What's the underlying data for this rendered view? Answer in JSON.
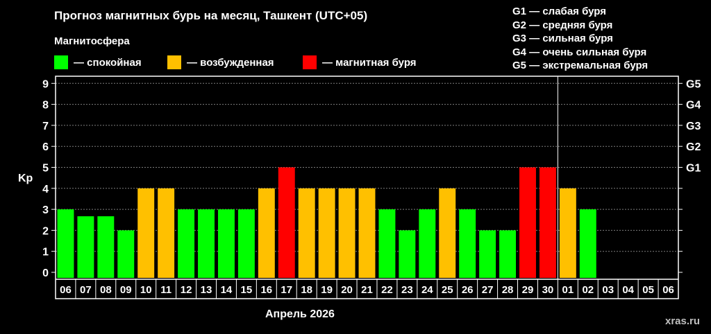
{
  "chart_data": {
    "type": "bar",
    "title": "Прогноз магнитных бурь на месяц, Ташкент (UTC+05)",
    "section_label": "Магнитосфера",
    "legend": [
      {
        "label": "— спокойная",
        "color": "#00ff00"
      },
      {
        "label": "— возбужденная",
        "color": "#ffc000"
      },
      {
        "label": "— магнитная буря",
        "color": "#ff0000"
      }
    ],
    "storm_scale": [
      "G1 — слабая буря",
      "G2 — средняя буря",
      "G3 — сильная буря",
      "G4 — очень сильная буря",
      "G5 — экстремальная буря"
    ],
    "xlabel": "Апрель 2026",
    "ylabel": "Kp",
    "ylim": [
      0,
      9
    ],
    "yticks": [
      "0",
      "1",
      "2",
      "3",
      "4",
      "5",
      "6",
      "7",
      "8",
      "9"
    ],
    "right_ticks": [
      {
        "value": 5,
        "label": "G1"
      },
      {
        "value": 6,
        "label": "G2"
      },
      {
        "value": 7,
        "label": "G3"
      },
      {
        "value": 8,
        "label": "G4"
      },
      {
        "value": 9,
        "label": "G5"
      }
    ],
    "categories": [
      "06",
      "07",
      "08",
      "09",
      "10",
      "11",
      "12",
      "13",
      "14",
      "15",
      "16",
      "17",
      "18",
      "19",
      "20",
      "21",
      "22",
      "23",
      "24",
      "25",
      "26",
      "27",
      "28",
      "29",
      "30",
      "01",
      "02",
      "03",
      "04",
      "05",
      "06"
    ],
    "values": [
      3,
      2.67,
      2.67,
      2,
      4,
      4,
      3,
      3,
      3,
      3,
      4,
      5,
      4,
      4,
      4,
      4,
      3,
      2,
      3,
      4,
      3,
      2,
      2,
      5,
      5,
      4,
      3,
      null,
      null,
      null,
      null
    ],
    "month_boundary_after": "30",
    "grid": true,
    "colors": {
      "quiet": "#00ff00",
      "unsettled": "#ffc000",
      "storm": "#ff0000",
      "grid": "#7f7f7f",
      "axis": "#ffffff"
    }
  },
  "watermark": "xras.ru"
}
